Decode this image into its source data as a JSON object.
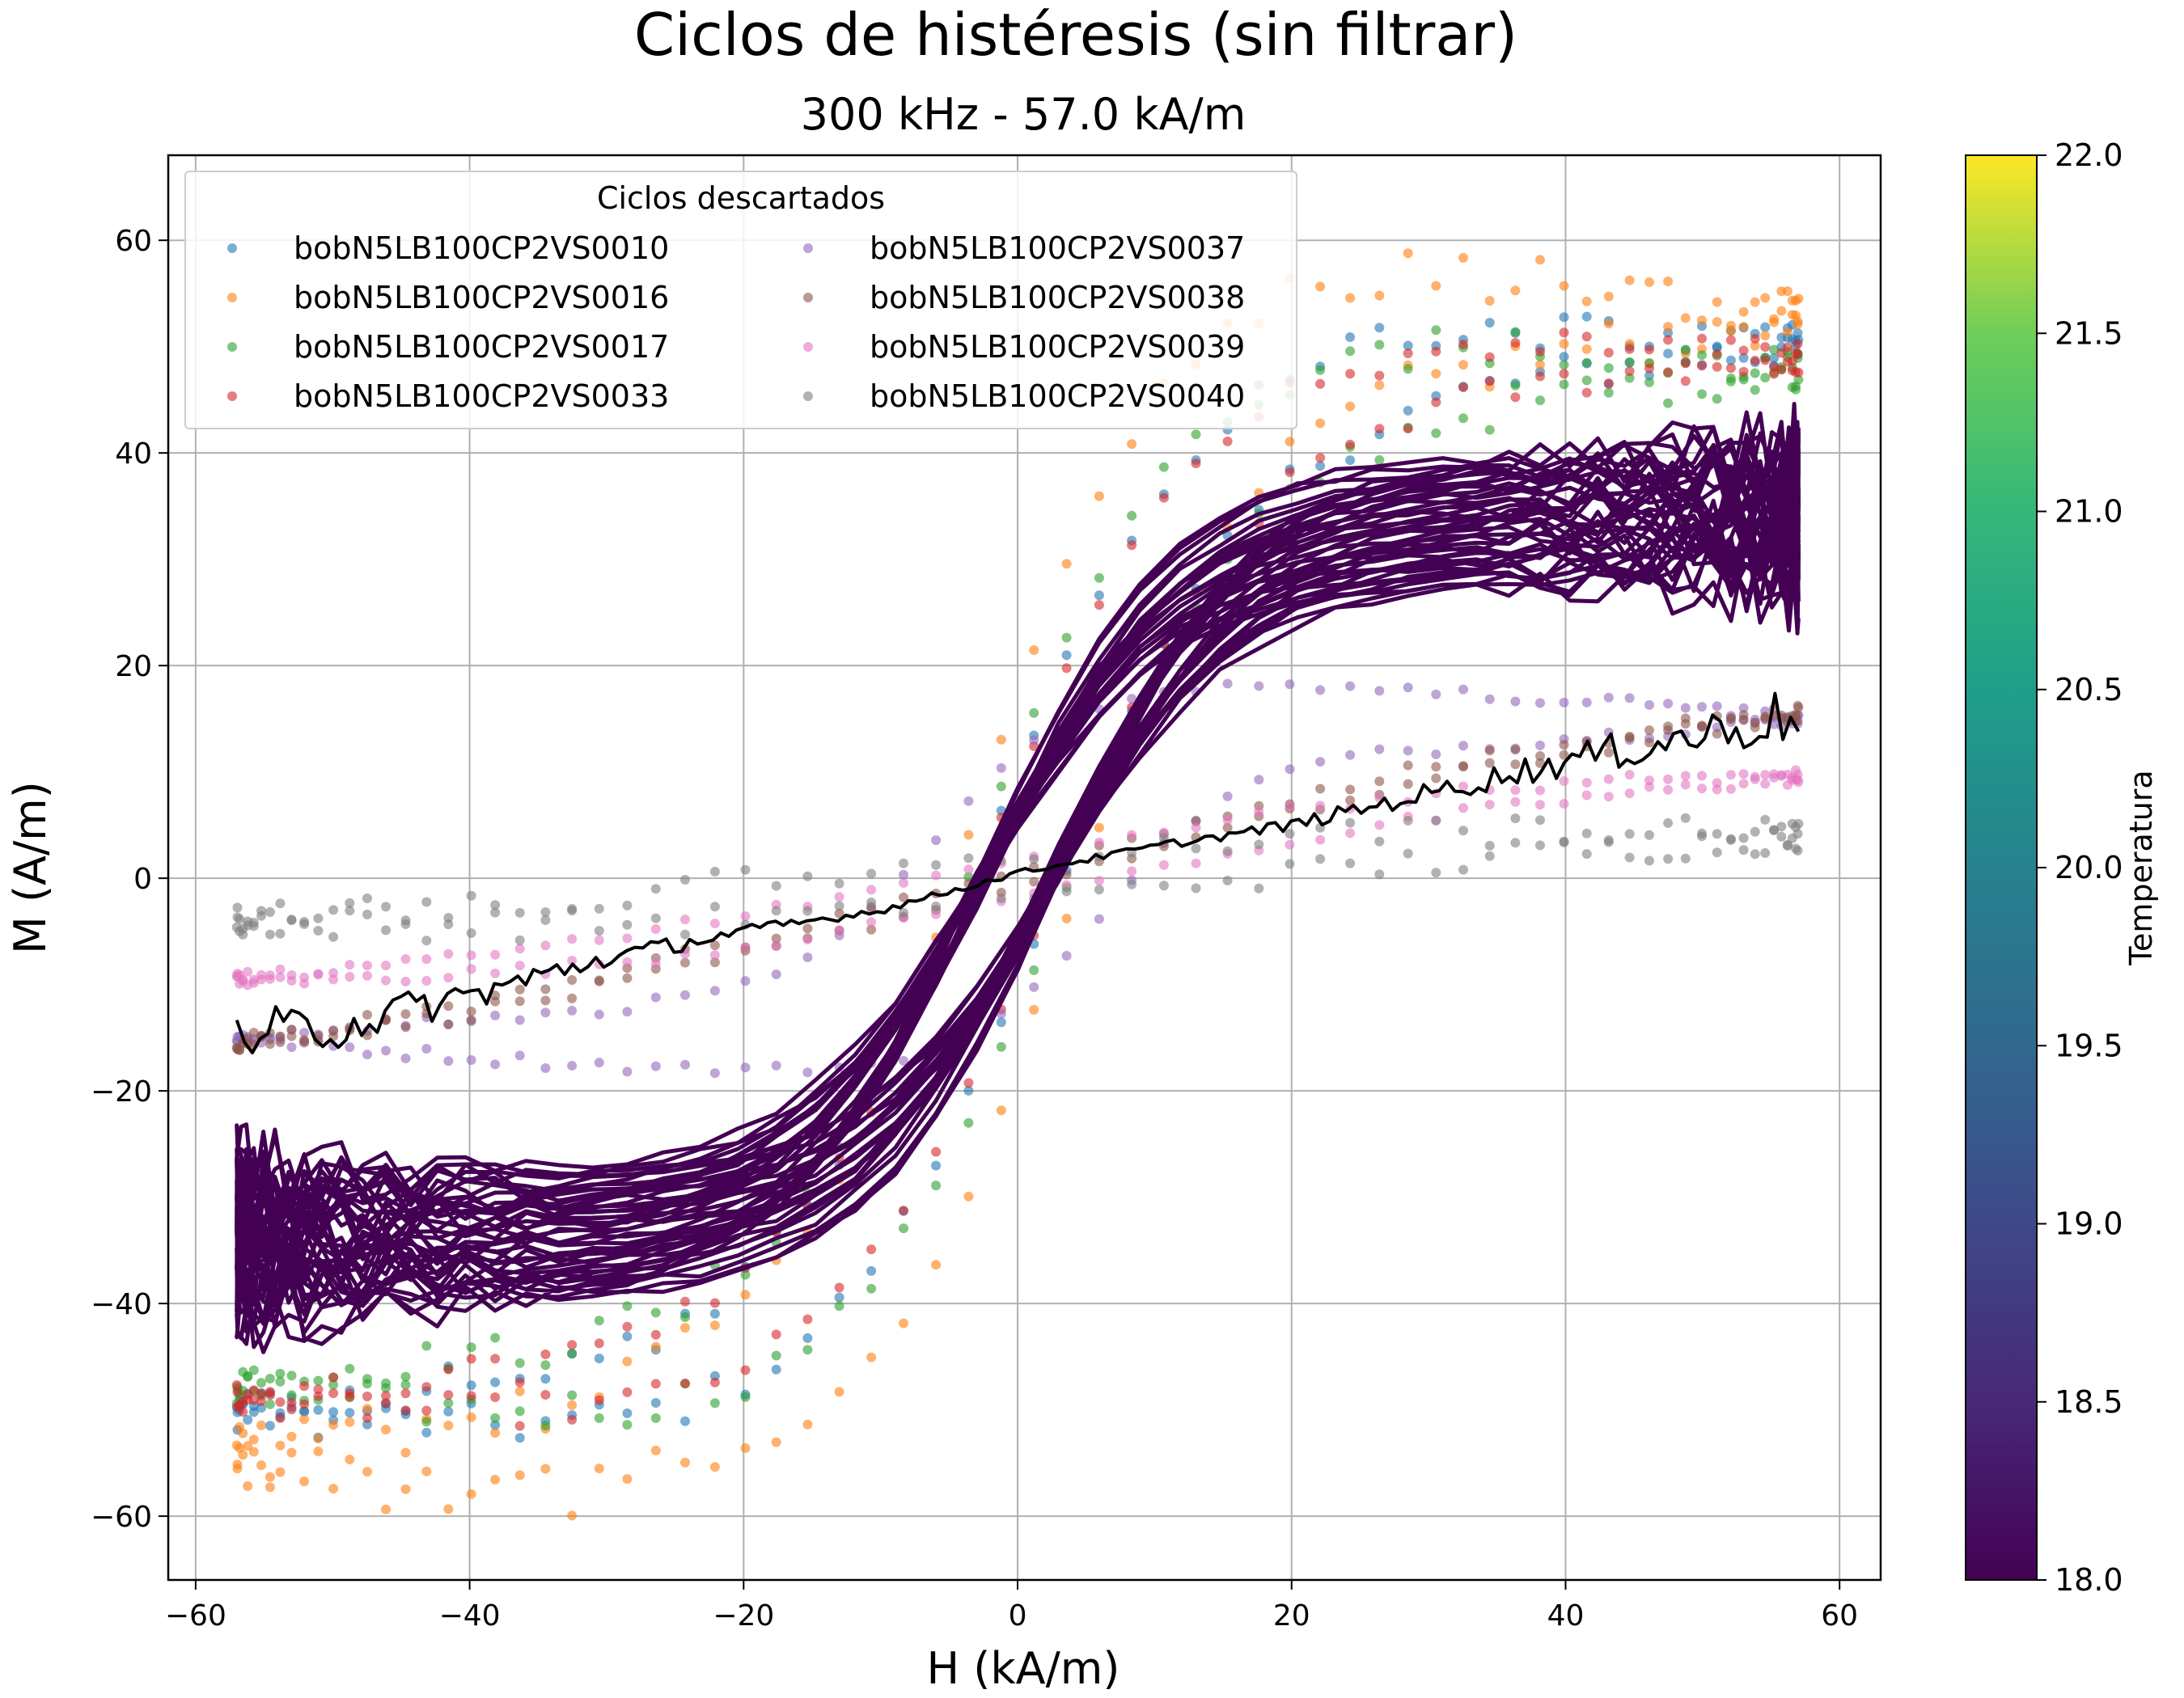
{
  "chart_data": {
    "type": "scatter",
    "title": "Ciclos de histéresis (sin filtrar)",
    "subtitle": "300 kHz - 57.0 kA/m",
    "xlabel": "H (kA/m)",
    "ylabel": "M (A/m)",
    "xlim": [
      -62,
      63
    ],
    "ylim": [
      -66,
      68
    ],
    "xticks": [
      -60,
      -40,
      -20,
      0,
      20,
      40,
      60
    ],
    "yticks": [
      -60,
      -40,
      -20,
      0,
      20,
      40,
      60
    ],
    "xtick_labels": [
      "−60",
      "−40",
      "−20",
      "0",
      "20",
      "40",
      "60"
    ],
    "ytick_labels": [
      "−60",
      "−40",
      "−20",
      "0",
      "20",
      "40",
      "60"
    ],
    "grid": true,
    "legend": {
      "title": "Ciclos descartados",
      "placement": "top-left",
      "columns": 2
    },
    "colorbar": {
      "label": "Temperatura",
      "range": [
        18.0,
        22.0
      ],
      "ticks": [
        "18.0",
        "18.5",
        "19.0",
        "19.5",
        "20.0",
        "20.5",
        "21.0",
        "21.5",
        "22.0"
      ]
    },
    "discarded_series": [
      {
        "name": "bobN5LB100CP2VS0010",
        "color": "#1f77b4",
        "hmax": 57,
        "mmax": 50,
        "knee": 16,
        "hc": 2.0,
        "loop": 6,
        "pk_neg": 0,
        "wobble": 2.0
      },
      {
        "name": "bobN5LB100CP2VS0016",
        "color": "#ff7f0e",
        "hmax": 57,
        "mmax": 53,
        "knee": 14,
        "hc": 3.0,
        "loop": 10,
        "pk_neg": 3,
        "wobble": 2.5
      },
      {
        "name": "bobN5LB100CP2VS0017",
        "color": "#2ca02c",
        "hmax": 57,
        "mmax": 48,
        "knee": 15,
        "hc": 2.5,
        "loop": 7,
        "pk_neg": 0,
        "wobble": 2.0
      },
      {
        "name": "bobN5LB100CP2VS0033",
        "color": "#d62728",
        "hmax": 57,
        "mmax": 49,
        "knee": 16,
        "hc": 2.0,
        "loop": 5,
        "pk_neg": 0,
        "wobble": 1.5
      },
      {
        "name": "bobN5LB100CP2VS0037",
        "color": "#9467bd",
        "hmax": 57,
        "mmax": 15,
        "knee": 10,
        "hc": 6.0,
        "loop": 6,
        "pk_neg": 0,
        "wobble": 0.6
      },
      {
        "name": "bobN5LB100CP2VS0038",
        "color": "#8c564b",
        "hmax": 57,
        "mmax": 15.5,
        "knee": 60,
        "hc": 0.5,
        "loop": 1,
        "pk_neg": 0,
        "wobble": 0.8
      },
      {
        "name": "bobN5LB100CP2VS0039",
        "color": "#e377c2",
        "hmax": 57,
        "mmax": 9.5,
        "knee": 40,
        "hc": 2.0,
        "loop": 2,
        "pk_neg": 0,
        "wobble": 0.6
      },
      {
        "name": "bobN5LB100CP2VS0040",
        "color": "#7f7f7f",
        "hmax": 57,
        "mmax": 4,
        "knee": 40,
        "hc": 1.0,
        "loop": 3,
        "pk_neg": 0,
        "wobble": 1.5
      }
    ],
    "accepted_cycles": {
      "count": 22,
      "color": "#440154",
      "hmax": 57,
      "mmax_min": 28,
      "mmax_max": 40,
      "knee": 14,
      "hc": 2.5,
      "temperature": 18.0
    },
    "reference_line": {
      "color": "#000000",
      "points": [
        [
          -57,
          -15
        ],
        [
          -50,
          -14
        ],
        [
          -40,
          -11
        ],
        [
          -30,
          -7.5
        ],
        [
          -20,
          -5
        ],
        [
          -10,
          -3
        ],
        [
          0,
          0.5
        ],
        [
          10,
          3
        ],
        [
          20,
          5
        ],
        [
          30,
          8
        ],
        [
          40,
          11
        ],
        [
          50,
          13.5
        ],
        [
          57,
          15.5
        ]
      ]
    }
  }
}
